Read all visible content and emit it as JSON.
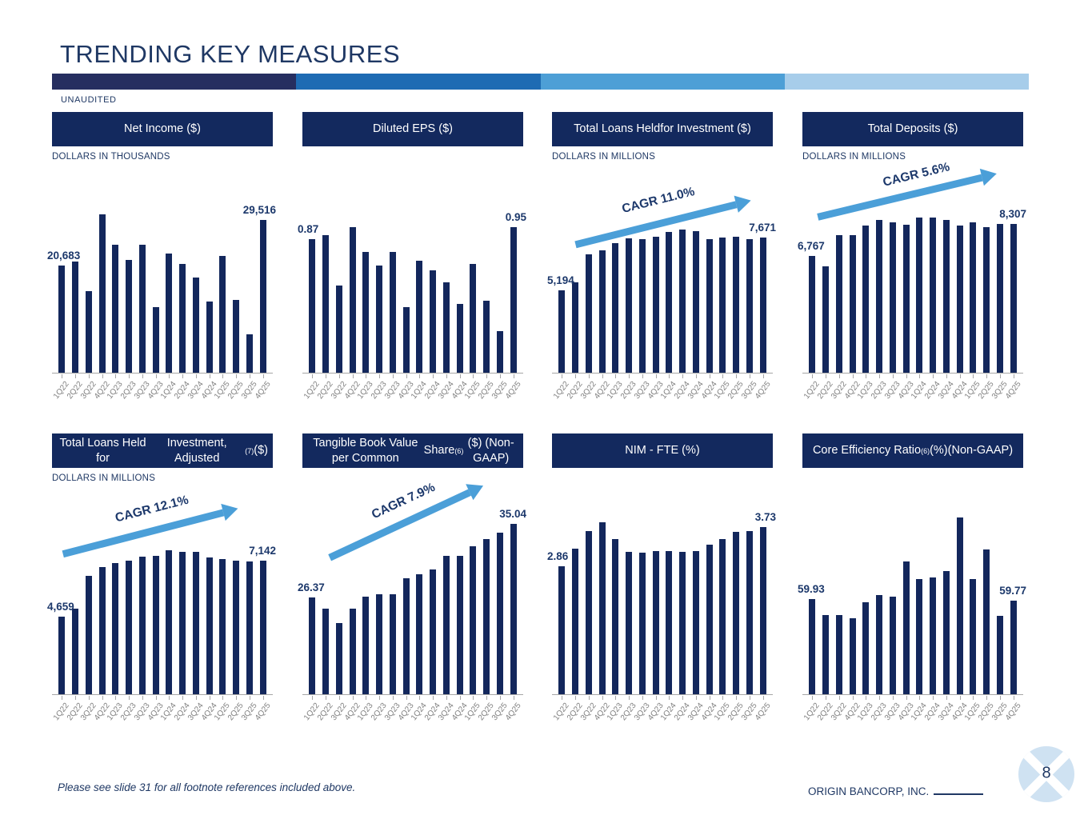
{
  "title": "TRENDING KEY MEASURES",
  "unaudited_label": "UNAUDITED",
  "colors": {
    "bar": "#13275c",
    "navy_text": "#1f3864",
    "header_bg": "#13295e",
    "arrow_blue": "#4b9fd8",
    "axis_gray": "#a6a6a6",
    "xlabel_gray": "#7f7f7f",
    "stripe": [
      "#262e60",
      "#1e6bb3",
      "#4d9fd6",
      "#a7cdea"
    ]
  },
  "categories": [
    "1Q22",
    "2Q22",
    "3Q22",
    "4Q22",
    "1Q23",
    "2Q23",
    "3Q23",
    "4Q23",
    "1Q24",
    "2Q24",
    "3Q24",
    "4Q24",
    "1Q25",
    "2Q25",
    "3Q25",
    "4Q25"
  ],
  "chart_data": [
    {
      "id": "net-income",
      "type": "bar",
      "title_segments": [
        {
          "text": "Net Income ($)"
        }
      ],
      "units": "DOLLARS IN THOUSANDS",
      "cagr_label": null,
      "first_value_label": "20,683",
      "last_value_label": "29,516",
      "values": [
        20683,
        21450,
        15750,
        30550,
        24700,
        21800,
        24700,
        12650,
        23000,
        21000,
        18400,
        13750,
        22550,
        14050,
        7400,
        29516
      ],
      "ylim": [
        0,
        34300
      ]
    },
    {
      "id": "diluted-eps",
      "type": "bar",
      "title_segments": [
        {
          "text": "Diluted EPS ($)"
        }
      ],
      "units": "",
      "cagr_label": null,
      "first_value_label": "0.87",
      "last_value_label": "0.95",
      "values": [
        0.87,
        0.9,
        0.57,
        0.95,
        0.79,
        0.7,
        0.79,
        0.43,
        0.73,
        0.67,
        0.59,
        0.45,
        0.71,
        0.47,
        0.27,
        0.95
      ],
      "ylim": [
        0,
        1.16
      ]
    },
    {
      "id": "total-loans-hfi",
      "type": "bar",
      "title_segments": [
        {
          "text": "Total Loans Held"
        },
        {
          "break": true
        },
        {
          "text": "for Investment ($)"
        }
      ],
      "units": "DOLLARS IN MILLIONS",
      "cagr_label": "CAGR 11.0%",
      "first_value_label": "5,194",
      "last_value_label": "7,671",
      "values": [
        5194,
        5550,
        6890,
        7080,
        7420,
        7620,
        7580,
        7710,
        7920,
        8050,
        7960,
        7610,
        7670,
        7710,
        7580,
        7671
      ],
      "ylim": [
        1320,
        9660
      ]
    },
    {
      "id": "total-deposits",
      "type": "bar",
      "title_segments": [
        {
          "text": "Total Deposits ($)"
        }
      ],
      "units": "DOLLARS IN MILLIONS",
      "cagr_label": "CAGR 5.6%",
      "first_value_label": "6,767",
      "last_value_label": "8,307",
      "values": [
        6767,
        6305,
        7770,
        7780,
        8220,
        8495,
        8370,
        8270,
        8580,
        8595,
        8470,
        8230,
        8370,
        8145,
        8295,
        8307
      ],
      "ylim": [
        1270,
        9650
      ]
    },
    {
      "id": "total-loans-hfi-adjusted",
      "type": "bar",
      "title_segments": [
        {
          "text": "Total Loans Held for"
        },
        {
          "break": true
        },
        {
          "text": "Investment, Adjusted"
        },
        {
          "text": "(7)",
          "sup": true
        },
        {
          "text": " ($)"
        }
      ],
      "units": "DOLLARS IN MILLIONS",
      "cagr_label": "CAGR 12.1%",
      "first_value_label": "4,659",
      "last_value_label": "7,142",
      "values": [
        4659,
        5010,
        6455,
        6870,
        7050,
        7130,
        7320,
        7365,
        7600,
        7530,
        7530,
        7295,
        7225,
        7155,
        7105,
        7142
      ],
      "ylim": [
        1210,
        9100
      ]
    },
    {
      "id": "tangible-book-value",
      "type": "bar",
      "title_segments": [
        {
          "text": "Tangible Book Value per Common"
        },
        {
          "break": true
        },
        {
          "text": "Share"
        },
        {
          "text": "(6)",
          "sup": true
        },
        {
          "text": " ($) (Non-GAAP)"
        }
      ],
      "units": "",
      "cagr_label": "CAGR 7.9%",
      "first_value_label": "26.37",
      "last_value_label": "35.04",
      "values": [
        26.37,
        25.05,
        23.42,
        25.05,
        26.46,
        26.78,
        26.78,
        28.66,
        29.13,
        29.67,
        31.33,
        31.33,
        32.37,
        33.31,
        34.0,
        35.04
      ],
      "ylim": [
        15,
        35.9
      ]
    },
    {
      "id": "nim-fte",
      "type": "bar",
      "title_segments": [
        {
          "text": "NIM - FTE (%)"
        }
      ],
      "units": "",
      "cagr_label": null,
      "first_value_label": "2.86",
      "last_value_label": "3.73",
      "values": [
        2.86,
        3.25,
        3.65,
        3.83,
        3.46,
        3.19,
        3.16,
        3.21,
        3.21,
        3.18,
        3.21,
        3.35,
        3.46,
        3.63,
        3.65,
        3.73
      ],
      "ylim": [
        0.05,
        3.96
      ]
    },
    {
      "id": "core-efficiency-ratio",
      "type": "bar",
      "title_segments": [
        {
          "text": "Core Efficiency Ratio"
        },
        {
          "text": "(6)",
          "sup": true
        },
        {
          "text": " (%)"
        },
        {
          "break": true
        },
        {
          "text": "(Non-GAAP)"
        }
      ],
      "units": "",
      "cagr_label": null,
      "first_value_label": "59.93",
      "last_value_label": "59.77",
      "values": [
        59.93,
        58.3,
        58.3,
        58.0,
        59.6,
        60.4,
        60.2,
        63.9,
        62.1,
        62.2,
        62.9,
        68.5,
        62.1,
        65.2,
        58.2,
        59.77
      ],
      "ylim": [
        50,
        68.6
      ]
    }
  ],
  "footer": {
    "note": "Please see slide 31 for all footnote references included above.",
    "company": "ORIGIN BANCORP, INC.",
    "page_number": "8"
  }
}
